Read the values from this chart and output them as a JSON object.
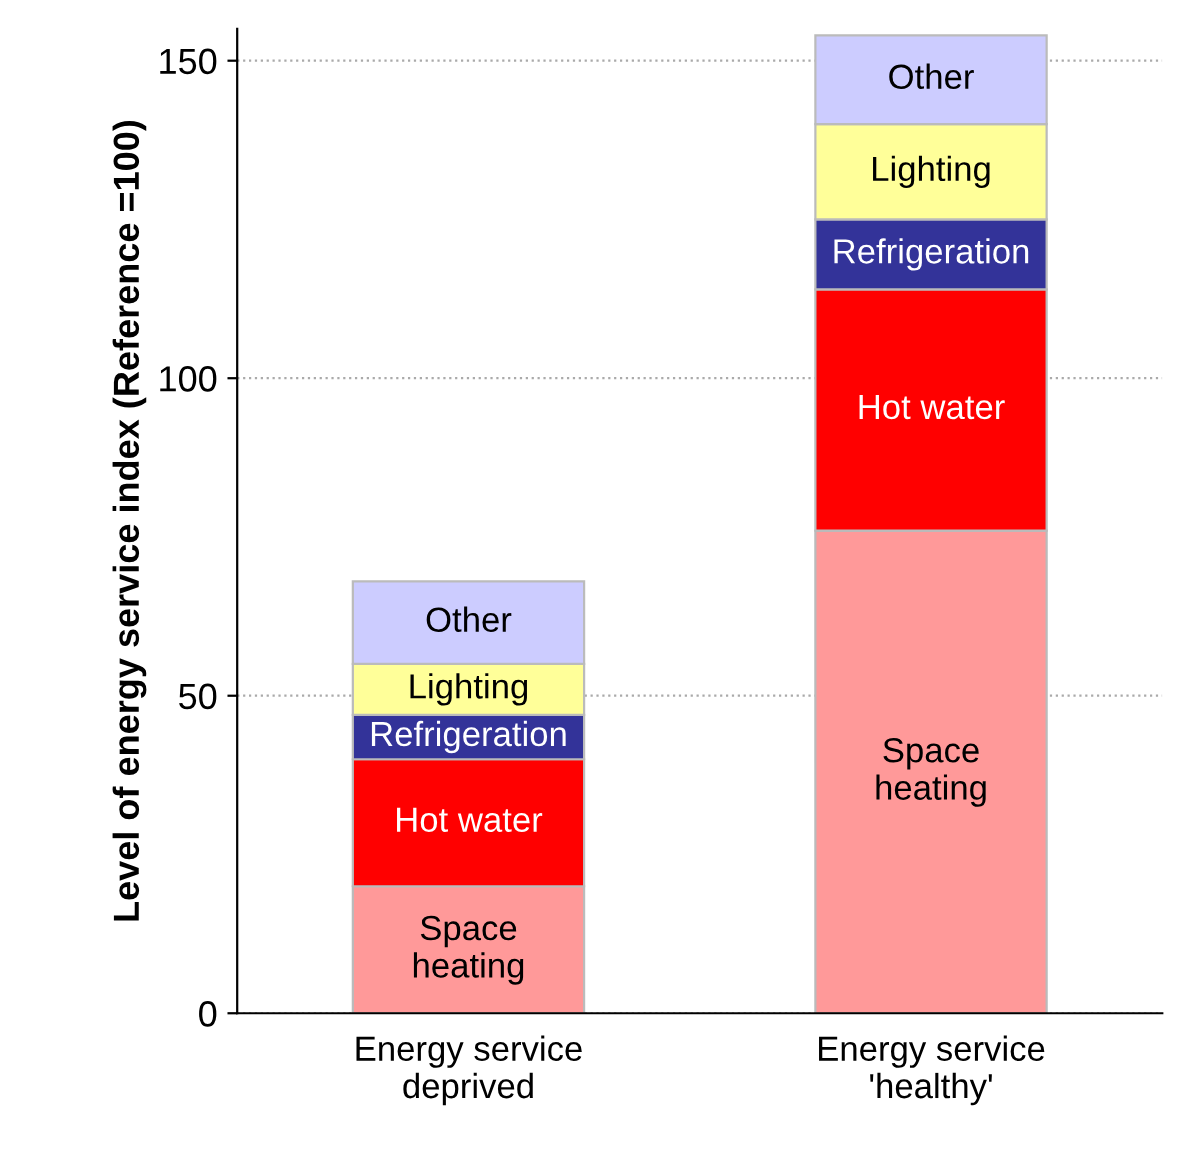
{
  "chart_data": {
    "type": "bar",
    "stacked": true,
    "ylabel": "Level of energy service index (Reference =100)",
    "categories": [
      "Energy service\ndeprived",
      "Energy service\n'healthy'"
    ],
    "series": [
      {
        "name": "Space\nheating",
        "color": "#ff9999",
        "values": [
          20,
          76
        ]
      },
      {
        "name": "Hot water",
        "color": "#ff0000",
        "values": [
          20,
          38
        ]
      },
      {
        "name": "Refrigeration",
        "color": "#333399",
        "values": [
          7,
          11
        ]
      },
      {
        "name": "Lighting",
        "color": "#ffff99",
        "values": [
          8,
          15
        ]
      },
      {
        "name": "Other",
        "color": "#ccccff",
        "values": [
          13,
          14
        ]
      }
    ],
    "ylim": [
      0,
      155
    ],
    "yticks": [
      0,
      50,
      100,
      150
    ],
    "grid": "y",
    "legend": false
  }
}
